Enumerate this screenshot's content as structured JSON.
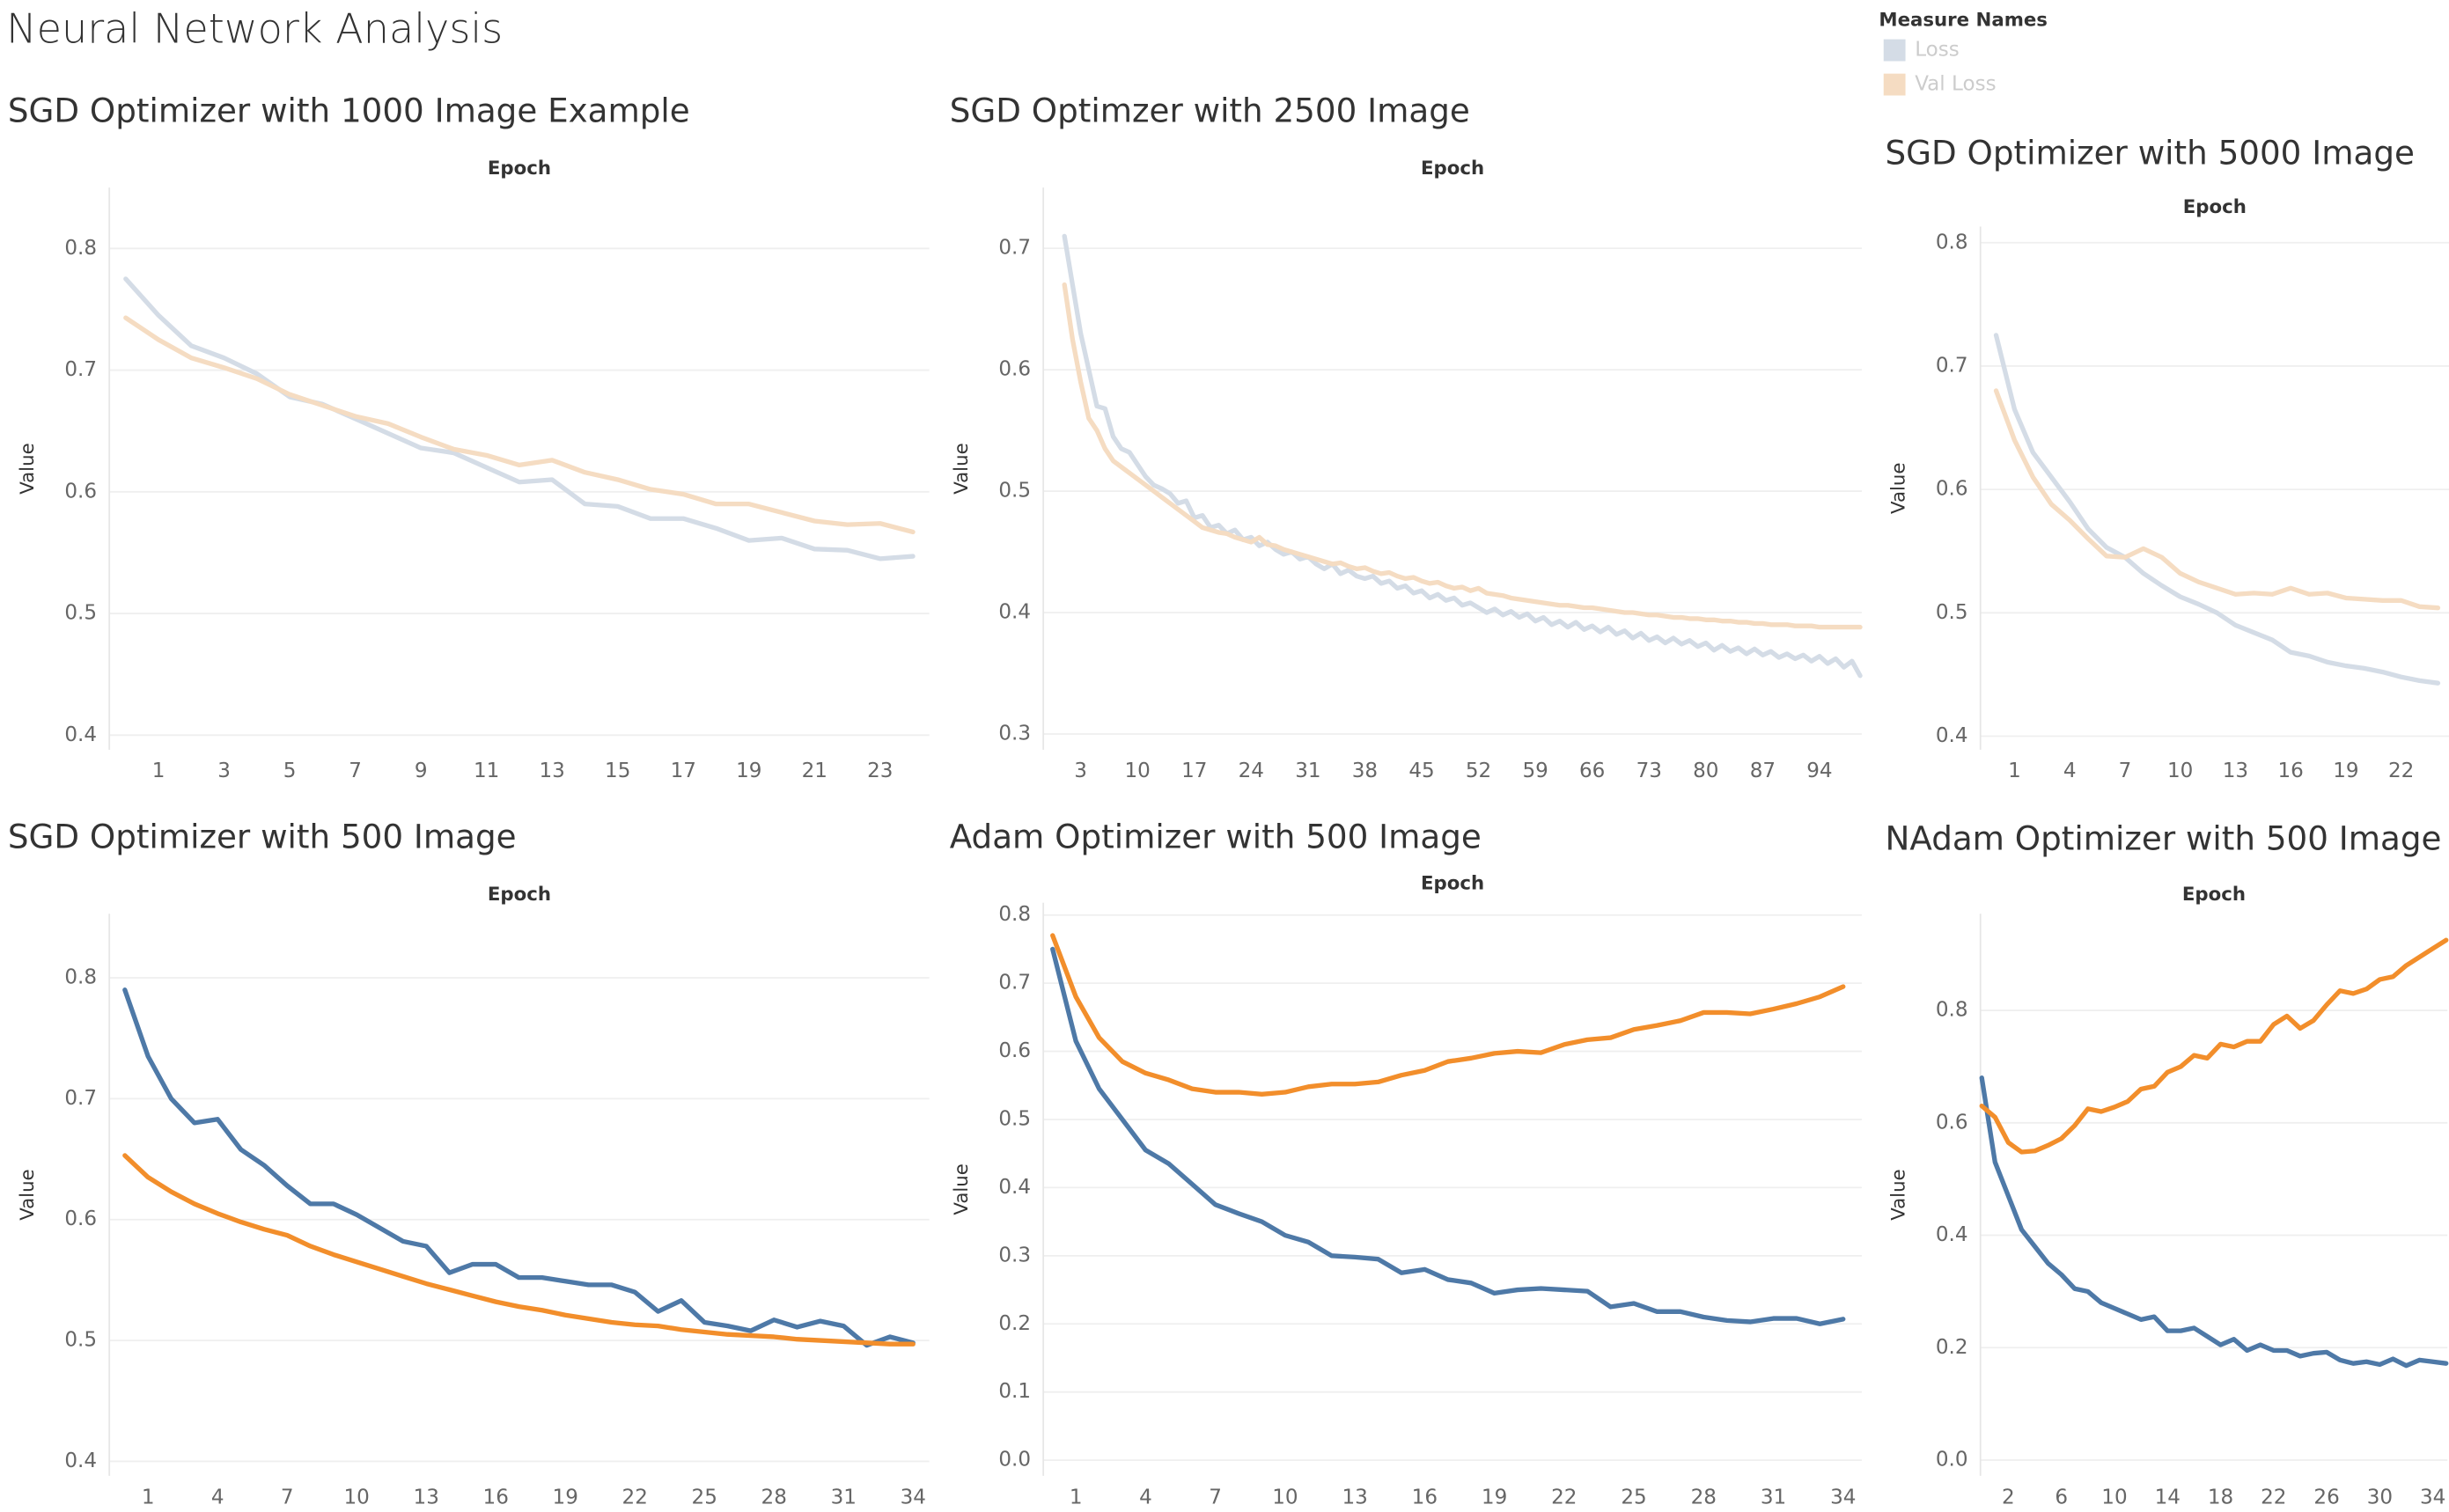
{
  "title": "Neural Network Analysis",
  "legend": {
    "title": "Measure Names"
  },
  "chart_data": [
    {
      "type": "line",
      "title": "SGD Optimizer with 1000 Image Example",
      "xlabel": "Epoch",
      "ylabel": "Value",
      "x": [
        0,
        1,
        2,
        3,
        4,
        5,
        6,
        7,
        8,
        9,
        10,
        11,
        12,
        13,
        14,
        15,
        16,
        17,
        18,
        19,
        20,
        21,
        22,
        23,
        24
      ],
      "xlim": [
        -0.5,
        24.5
      ],
      "xticks": [
        1,
        3,
        5,
        7,
        9,
        11,
        13,
        15,
        17,
        19,
        21,
        23
      ],
      "ylim": [
        0.388,
        0.85
      ],
      "yticks": [
        0.4,
        0.5,
        0.6,
        0.7,
        0.8
      ],
      "grid": true,
      "series": [
        {
          "name": "Loss",
          "color": "#d4dce6",
          "values": [
            0.775,
            0.745,
            0.72,
            0.71,
            0.697,
            0.678,
            0.672,
            0.66,
            0.648,
            0.636,
            0.632,
            0.62,
            0.608,
            0.61,
            0.59,
            0.588,
            0.578,
            0.578,
            0.57,
            0.56,
            0.562,
            0.553,
            0.552,
            0.545,
            0.547
          ]
        },
        {
          "name": "Val Loss",
          "color": "#f5dcc2",
          "values": [
            0.743,
            0.725,
            0.71,
            0.702,
            0.693,
            0.68,
            0.671,
            0.662,
            0.656,
            0.645,
            0.635,
            0.63,
            0.622,
            0.626,
            0.616,
            0.61,
            0.602,
            0.598,
            0.59,
            0.59,
            0.583,
            0.576,
            0.573,
            0.574,
            0.567
          ]
        }
      ]
    },
    {
      "type": "line",
      "title": "SGD Optimzer with 2500 Image",
      "xlabel": "Epoch",
      "ylabel": "Value",
      "x": [
        1,
        2,
        3,
        4,
        5,
        6,
        7,
        8,
        9,
        10,
        11,
        12,
        13,
        14,
        15,
        16,
        17,
        18,
        19,
        20,
        21,
        22,
        23,
        24,
        25,
        26,
        27,
        28,
        29,
        30,
        31,
        32,
        33,
        34,
        35,
        36,
        37,
        38,
        39,
        40,
        41,
        42,
        43,
        44,
        45,
        46,
        47,
        48,
        49,
        50,
        51,
        52,
        53,
        54,
        55,
        56,
        57,
        58,
        59,
        60,
        61,
        62,
        63,
        64,
        65,
        66,
        67,
        68,
        69,
        70,
        71,
        72,
        73,
        74,
        75,
        76,
        77,
        78,
        79,
        80,
        81,
        82,
        83,
        84,
        85,
        86,
        87,
        88,
        89,
        90,
        91,
        92,
        93,
        94,
        95,
        96,
        97,
        98,
        99
      ],
      "xlim": [
        -1.6,
        99.2
      ],
      "xticks": [
        3,
        10,
        17,
        24,
        31,
        38,
        45,
        52,
        59,
        66,
        73,
        80,
        87,
        94
      ],
      "ylim": [
        0.287,
        0.75
      ],
      "yticks": [
        0.3,
        0.4,
        0.5,
        0.6,
        0.7
      ],
      "grid": true,
      "series": [
        {
          "name": "Loss",
          "color": "#d4dce6",
          "values": [
            0.71,
            0.67,
            0.63,
            0.6,
            0.57,
            0.568,
            0.545,
            0.535,
            0.532,
            0.522,
            0.512,
            0.505,
            0.502,
            0.498,
            0.49,
            0.492,
            0.478,
            0.48,
            0.47,
            0.472,
            0.465,
            0.468,
            0.46,
            0.462,
            0.455,
            0.458,
            0.452,
            0.448,
            0.45,
            0.444,
            0.446,
            0.44,
            0.436,
            0.44,
            0.432,
            0.435,
            0.43,
            0.428,
            0.43,
            0.424,
            0.426,
            0.42,
            0.422,
            0.416,
            0.418,
            0.412,
            0.415,
            0.41,
            0.412,
            0.406,
            0.408,
            0.404,
            0.4,
            0.403,
            0.398,
            0.401,
            0.396,
            0.399,
            0.393,
            0.396,
            0.39,
            0.393,
            0.388,
            0.392,
            0.386,
            0.389,
            0.384,
            0.388,
            0.382,
            0.385,
            0.379,
            0.383,
            0.377,
            0.38,
            0.375,
            0.379,
            0.374,
            0.377,
            0.372,
            0.375,
            0.369,
            0.373,
            0.368,
            0.371,
            0.366,
            0.37,
            0.365,
            0.368,
            0.363,
            0.366,
            0.362,
            0.365,
            0.36,
            0.364,
            0.358,
            0.362,
            0.355,
            0.36,
            0.348
          ]
        },
        {
          "name": "Val Loss",
          "color": "#f5dcc2",
          "values": [
            0.67,
            0.625,
            0.59,
            0.56,
            0.55,
            0.535,
            0.525,
            0.52,
            0.515,
            0.51,
            0.505,
            0.5,
            0.495,
            0.49,
            0.485,
            0.48,
            0.475,
            0.47,
            0.468,
            0.466,
            0.465,
            0.462,
            0.46,
            0.458,
            0.462,
            0.456,
            0.455,
            0.452,
            0.45,
            0.448,
            0.446,
            0.444,
            0.442,
            0.44,
            0.441,
            0.438,
            0.436,
            0.437,
            0.434,
            0.432,
            0.433,
            0.43,
            0.428,
            0.429,
            0.426,
            0.424,
            0.425,
            0.422,
            0.42,
            0.421,
            0.418,
            0.42,
            0.416,
            0.415,
            0.414,
            0.412,
            0.411,
            0.41,
            0.409,
            0.408,
            0.407,
            0.406,
            0.406,
            0.405,
            0.404,
            0.404,
            0.403,
            0.402,
            0.401,
            0.4,
            0.4,
            0.399,
            0.398,
            0.398,
            0.397,
            0.396,
            0.396,
            0.395,
            0.395,
            0.394,
            0.394,
            0.393,
            0.393,
            0.392,
            0.392,
            0.391,
            0.391,
            0.39,
            0.39,
            0.39,
            0.389,
            0.389,
            0.389,
            0.388,
            0.388,
            0.388,
            0.388,
            0.388,
            0.388
          ]
        }
      ]
    },
    {
      "type": "line",
      "title": "SGD Optimizer with 5000 Image",
      "xlabel": "Epoch",
      "ylabel": "Value",
      "x": [
        0,
        1,
        2,
        3,
        4,
        5,
        6,
        7,
        8,
        9,
        10,
        11,
        12,
        13,
        14,
        15,
        16,
        17,
        18,
        19,
        20,
        21,
        22,
        23,
        24
      ],
      "xlim": [
        -0.85,
        24.6
      ],
      "xticks": [
        1,
        4,
        7,
        10,
        13,
        16,
        19,
        22
      ],
      "ylim": [
        0.389,
        0.813
      ],
      "yticks": [
        0.4,
        0.5,
        0.6,
        0.7,
        0.8
      ],
      "grid": true,
      "series": [
        {
          "name": "Loss",
          "color": "#d4dce6",
          "values": [
            0.725,
            0.665,
            0.63,
            0.61,
            0.59,
            0.568,
            0.553,
            0.545,
            0.532,
            0.522,
            0.513,
            0.507,
            0.5,
            0.49,
            0.484,
            0.478,
            0.468,
            0.465,
            0.46,
            0.457,
            0.455,
            0.452,
            0.448,
            0.445,
            0.443
          ]
        },
        {
          "name": "Val Loss",
          "color": "#f5dcc2",
          "values": [
            0.68,
            0.64,
            0.61,
            0.588,
            0.575,
            0.56,
            0.546,
            0.545,
            0.552,
            0.545,
            0.532,
            0.525,
            0.52,
            0.515,
            0.516,
            0.515,
            0.52,
            0.515,
            0.516,
            0.512,
            0.511,
            0.51,
            0.51,
            0.505,
            0.504
          ]
        }
      ]
    },
    {
      "type": "line",
      "title": "SGD Optimizer with 500 Image",
      "xlabel": "Epoch",
      "ylabel": "Value",
      "x": [
        0,
        1,
        2,
        3,
        4,
        5,
        6,
        7,
        8,
        9,
        10,
        11,
        12,
        13,
        14,
        15,
        16,
        17,
        18,
        19,
        20,
        21,
        22,
        23,
        24,
        25,
        26,
        27,
        28,
        29,
        30,
        31,
        32,
        33,
        34
      ],
      "xlim": [
        -0.67,
        34.7
      ],
      "xticks": [
        1,
        4,
        7,
        10,
        13,
        16,
        19,
        22,
        25,
        28,
        31,
        34
      ],
      "ylim": [
        0.388,
        0.853
      ],
      "yticks": [
        0.4,
        0.5,
        0.6,
        0.7,
        0.8
      ],
      "grid": true,
      "series": [
        {
          "name": "Loss",
          "color": "#4e79a7",
          "values": [
            0.79,
            0.735,
            0.7,
            0.68,
            0.683,
            0.658,
            0.645,
            0.628,
            0.613,
            0.613,
            0.604,
            0.593,
            0.582,
            0.578,
            0.556,
            0.563,
            0.563,
            0.552,
            0.552,
            0.549,
            0.546,
            0.546,
            0.54,
            0.524,
            0.533,
            0.515,
            0.512,
            0.508,
            0.517,
            0.511,
            0.516,
            0.512,
            0.496,
            0.503,
            0.498
          ]
        },
        {
          "name": "Val Loss",
          "color": "#f28e2b",
          "values": [
            0.653,
            0.635,
            0.623,
            0.613,
            0.605,
            0.598,
            0.592,
            0.587,
            0.578,
            0.571,
            0.565,
            0.559,
            0.553,
            0.547,
            0.542,
            0.537,
            0.532,
            0.528,
            0.525,
            0.521,
            0.518,
            0.515,
            0.513,
            0.512,
            0.509,
            0.507,
            0.505,
            0.504,
            0.503,
            0.501,
            0.5,
            0.499,
            0.498,
            0.497,
            0.497
          ]
        }
      ]
    },
    {
      "type": "line",
      "title": "Adam Optimizer with 500 Image",
      "xlabel": "Epoch",
      "ylabel": "Value",
      "x": [
        0,
        1,
        2,
        3,
        4,
        5,
        6,
        7,
        8,
        9,
        10,
        11,
        12,
        13,
        14,
        15,
        16,
        17,
        18,
        19,
        20,
        21,
        22,
        23,
        24,
        25,
        26,
        27,
        28,
        29,
        30,
        31,
        32,
        33,
        34
      ],
      "xlim": [
        -0.4,
        34.8
      ],
      "xticks": [
        1,
        4,
        7,
        10,
        13,
        16,
        19,
        22,
        25,
        28,
        31,
        34
      ],
      "ylim": [
        -0.023,
        0.818
      ],
      "yticks": [
        {
          "value": 0,
          "label": "0.0"
        },
        0.1,
        0.2,
        0.3,
        0.4,
        0.5,
        0.6,
        0.7,
        0.8
      ],
      "grid": true,
      "series": [
        {
          "name": "Loss",
          "color": "#4e79a7",
          "values": [
            0.75,
            0.615,
            0.545,
            0.5,
            0.455,
            0.435,
            0.405,
            0.375,
            0.362,
            0.35,
            0.33,
            0.32,
            0.3,
            0.298,
            0.295,
            0.275,
            0.28,
            0.265,
            0.26,
            0.245,
            0.25,
            0.252,
            0.25,
            0.248,
            0.225,
            0.23,
            0.218,
            0.218,
            0.21,
            0.205,
            0.203,
            0.208,
            0.208,
            0.2,
            0.207
          ]
        },
        {
          "name": "Val Loss",
          "color": "#f28e2b",
          "values": [
            0.77,
            0.68,
            0.62,
            0.585,
            0.568,
            0.558,
            0.545,
            0.54,
            0.54,
            0.537,
            0.54,
            0.548,
            0.552,
            0.552,
            0.555,
            0.565,
            0.572,
            0.585,
            0.59,
            0.597,
            0.6,
            0.598,
            0.61,
            0.617,
            0.62,
            0.632,
            0.638,
            0.645,
            0.657,
            0.657,
            0.655,
            0.662,
            0.67,
            0.68,
            0.695
          ]
        }
      ]
    },
    {
      "type": "line",
      "title": "NAdam Optimizer with 500 Image",
      "xlabel": "Epoch",
      "ylabel": "Value",
      "x": [
        0,
        1,
        2,
        3,
        4,
        5,
        6,
        7,
        8,
        9,
        10,
        11,
        12,
        13,
        14,
        15,
        16,
        17,
        18,
        19,
        20,
        21,
        22,
        23,
        24,
        25,
        26,
        27,
        28,
        29,
        30,
        31,
        32,
        33,
        34,
        35
      ],
      "xlim": [
        -0.1,
        35.1
      ],
      "xticks": [
        2,
        6,
        10,
        14,
        18,
        22,
        26,
        30,
        34
      ],
      "ylim": [
        -0.028,
        0.972
      ],
      "yticks": [
        {
          "value": 0,
          "label": "0.0"
        },
        0.2,
        0.4,
        0.6,
        0.8
      ],
      "grid": true,
      "series": [
        {
          "name": "Loss",
          "color": "#4e79a7",
          "values": [
            0.68,
            0.53,
            0.47,
            0.41,
            0.38,
            0.35,
            0.33,
            0.305,
            0.3,
            0.28,
            0.27,
            0.26,
            0.25,
            0.255,
            0.23,
            0.23,
            0.235,
            0.22,
            0.205,
            0.215,
            0.195,
            0.205,
            0.195,
            0.195,
            0.185,
            0.19,
            0.192,
            0.178,
            0.172,
            0.175,
            0.17,
            0.18,
            0.168,
            0.178,
            0.175,
            0.172
          ]
        },
        {
          "name": "Val Loss",
          "color": "#f28e2b",
          "values": [
            0.63,
            0.61,
            0.565,
            0.548,
            0.55,
            0.56,
            0.572,
            0.595,
            0.625,
            0.62,
            0.628,
            0.638,
            0.66,
            0.665,
            0.69,
            0.7,
            0.72,
            0.715,
            0.74,
            0.735,
            0.745,
            0.745,
            0.775,
            0.79,
            0.768,
            0.782,
            0.81,
            0.835,
            0.83,
            0.838,
            0.855,
            0.86,
            0.88,
            0.895,
            0.91,
            0.925
          ]
        }
      ]
    }
  ]
}
